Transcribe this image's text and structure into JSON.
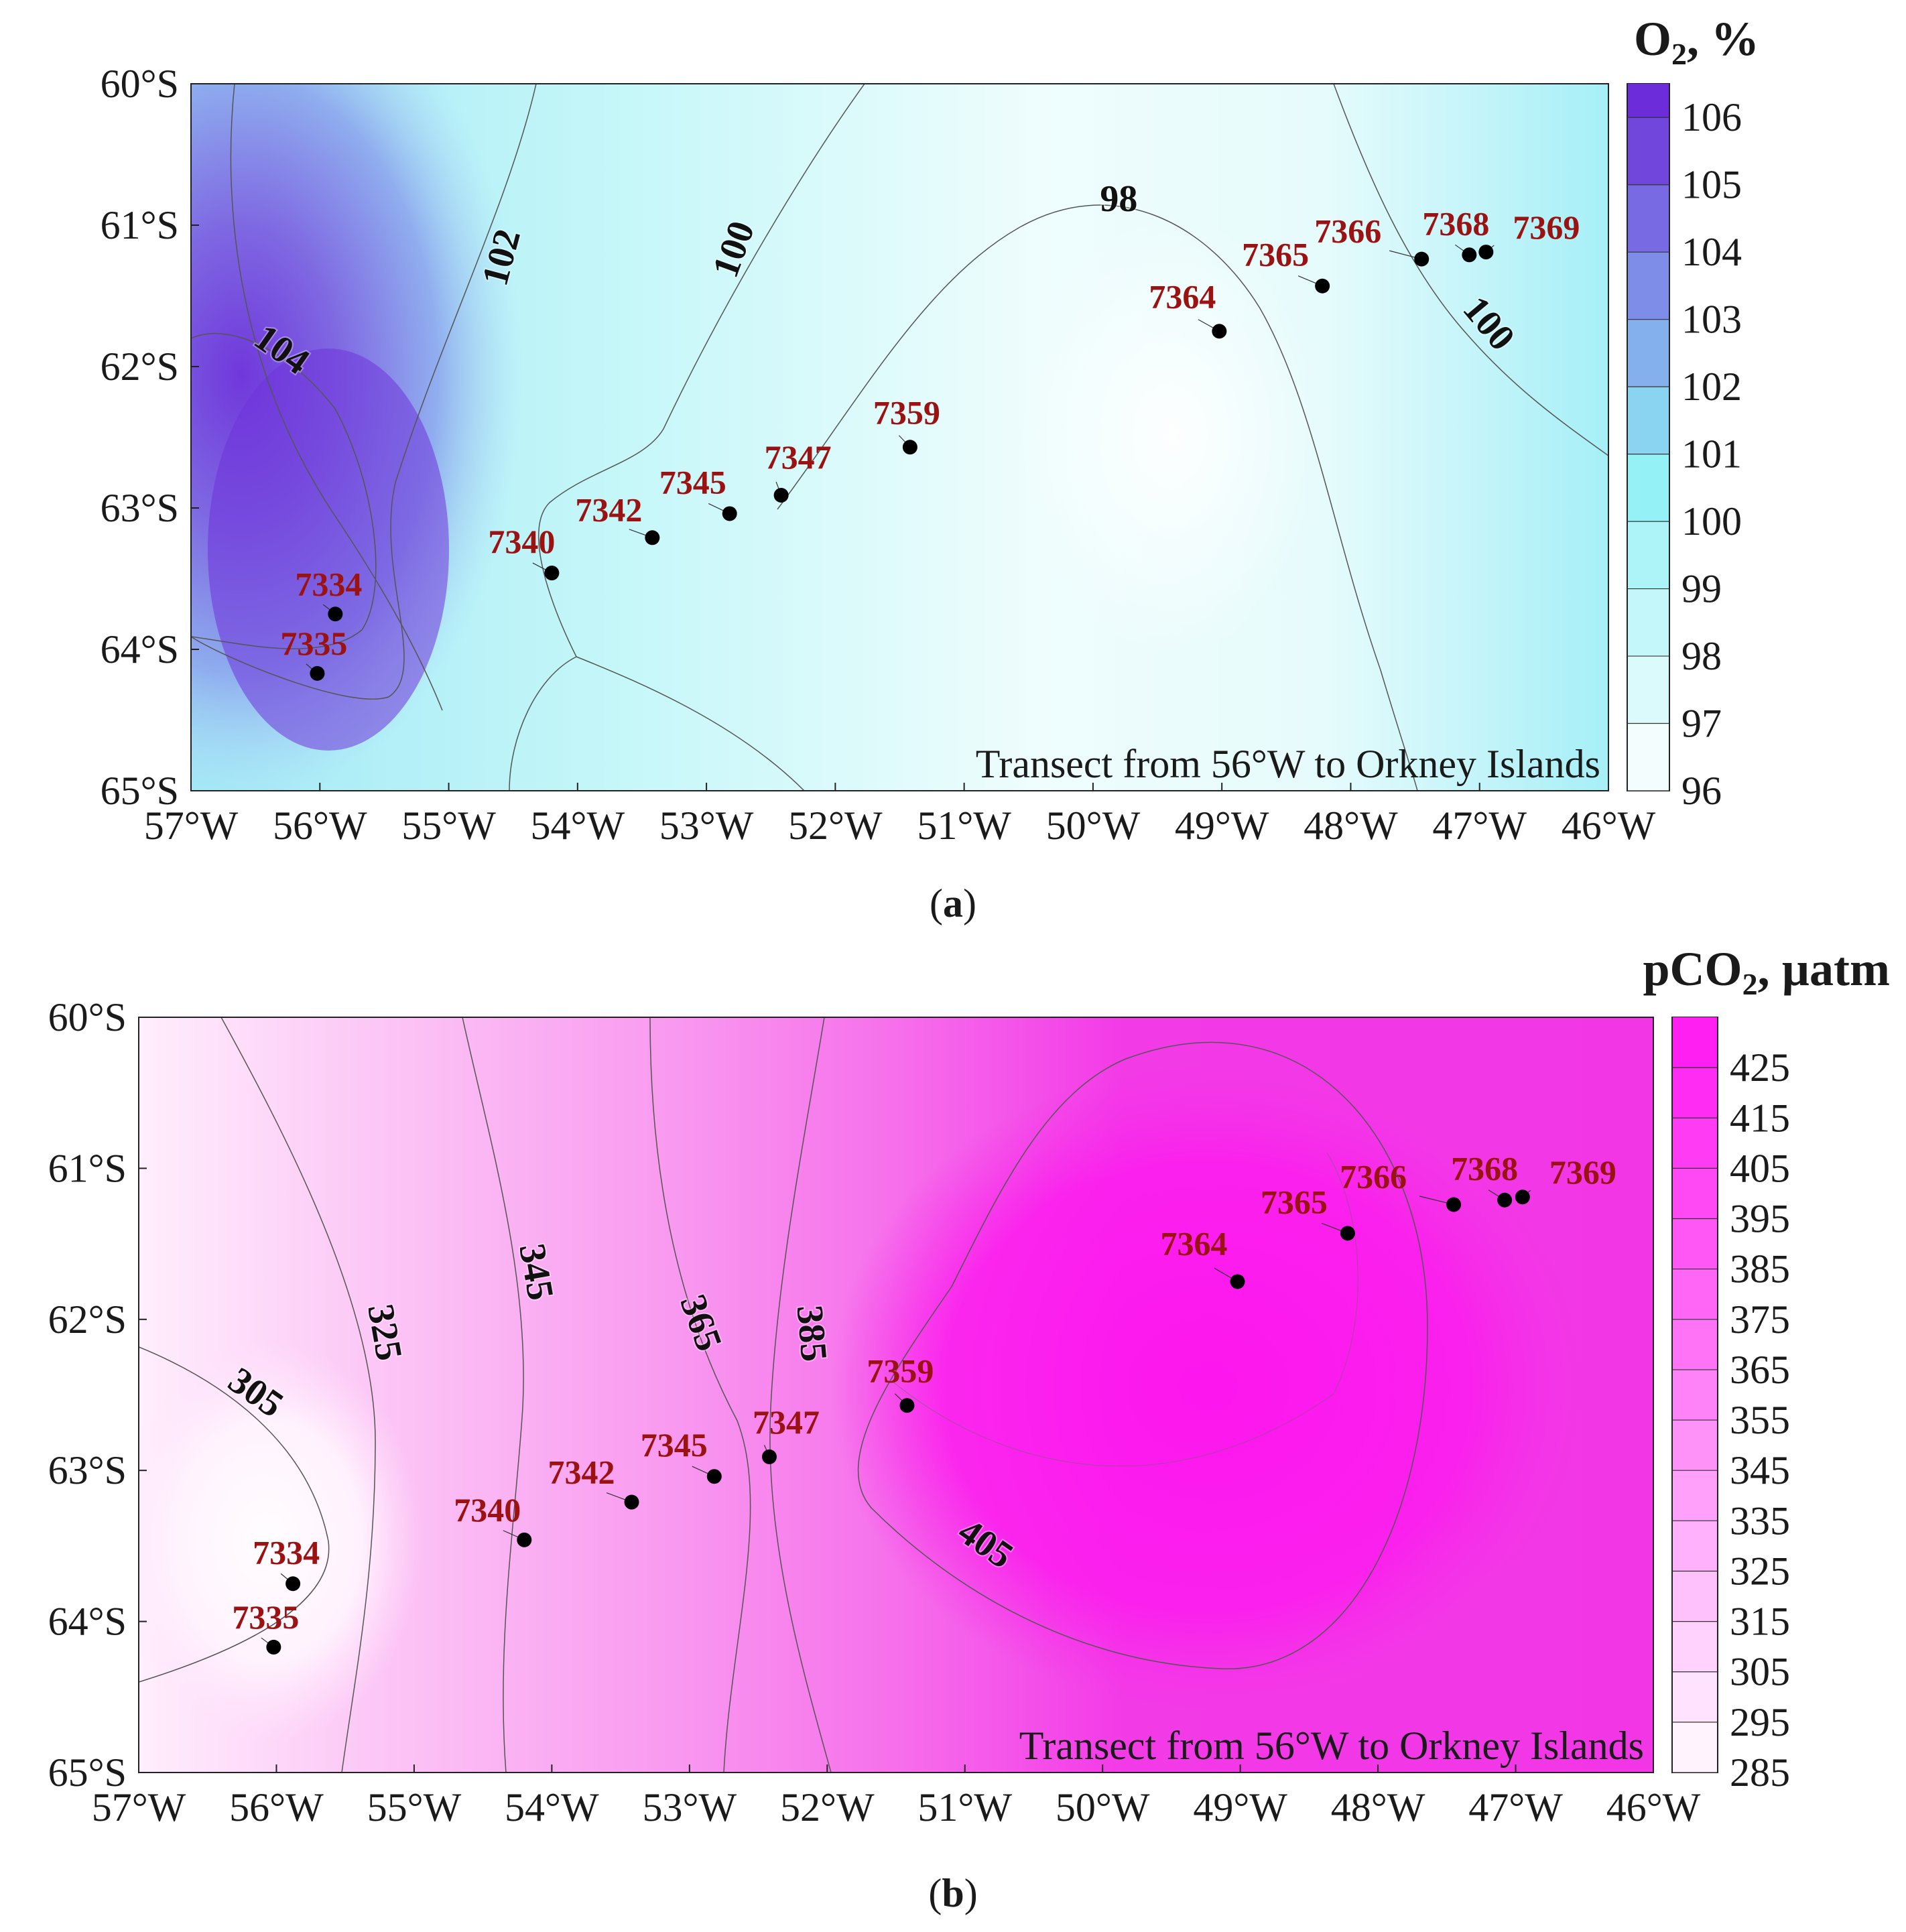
{
  "chart_data": [
    {
      "type": "contour",
      "panel_label": "a",
      "title": "O2, %",
      "colorbar_title": "O₂, %",
      "annotation": "Transect from 56°W to Orkney Islands",
      "x_ticks": [
        "57°W",
        "56°W",
        "55°W",
        "54°W",
        "53°W",
        "52°W",
        "51°W",
        "50°W",
        "49°W",
        "48°W",
        "47°W",
        "46°W"
      ],
      "y_ticks": [
        "60°S",
        "61°S",
        "62°S",
        "63°S",
        "64°S",
        "65°S"
      ],
      "xlim": [
        -57,
        -46
      ],
      "ylim": [
        -65,
        -60
      ],
      "colorbar_ticks": [
        "106",
        "105",
        "104",
        "103",
        "102",
        "101",
        "100",
        "99",
        "98",
        "97",
        "96"
      ],
      "colorbar_range": [
        96,
        106.5
      ],
      "contour_labels": [
        {
          "text": "104",
          "lon": -56.35,
          "lat": -61.95
        },
        {
          "text": "102",
          "lon": -54.5,
          "lat": -61.25
        },
        {
          "text": "100",
          "lon": -52.7,
          "lat": -61.2
        },
        {
          "text": "98",
          "lon": -49.8,
          "lat": -60.9
        },
        {
          "text": "100",
          "lon": -47.0,
          "lat": -61.75
        }
      ],
      "stations": [
        {
          "id": "7334",
          "lon": -55.88,
          "lat": -63.75
        },
        {
          "id": "7335",
          "lon": -56.02,
          "lat": -64.17
        },
        {
          "id": "7340",
          "lon": -54.2,
          "lat": -63.46
        },
        {
          "id": "7342",
          "lon": -53.42,
          "lat": -63.21
        },
        {
          "id": "7345",
          "lon": -52.82,
          "lat": -63.04
        },
        {
          "id": "7347",
          "lon": -52.42,
          "lat": -62.91
        },
        {
          "id": "7359",
          "lon": -51.42,
          "lat": -62.57
        },
        {
          "id": "7364",
          "lon": -49.02,
          "lat": -61.75
        },
        {
          "id": "7365",
          "lon": -48.22,
          "lat": -61.43
        },
        {
          "id": "7366",
          "lon": -47.45,
          "lat": -61.24
        },
        {
          "id": "7368",
          "lon": -47.08,
          "lat": -61.21
        },
        {
          "id": "7369",
          "lon": -46.95,
          "lat": -61.19
        }
      ]
    },
    {
      "type": "contour",
      "panel_label": "b",
      "title": "pCO2, µatm",
      "colorbar_title": "pCO₂, µatm",
      "annotation": "Transect from 56°W to Orkney Islands",
      "x_ticks": [
        "57°W",
        "56°W",
        "55°W",
        "54°W",
        "53°W",
        "52°W",
        "51°W",
        "50°W",
        "49°W",
        "48°W",
        "47°W",
        "46°W"
      ],
      "y_ticks": [
        "60°S",
        "61°S",
        "62°S",
        "63°S",
        "64°S",
        "65°S"
      ],
      "xlim": [
        -57,
        -46
      ],
      "ylim": [
        -65,
        -60
      ],
      "colorbar_ticks": [
        "425",
        "415",
        "405",
        "395",
        "385",
        "375",
        "365",
        "355",
        "345",
        "335",
        "325",
        "315",
        "305",
        "295",
        "285"
      ],
      "colorbar_range": [
        285,
        435
      ],
      "contour_labels": [
        {
          "text": "305",
          "lon": -56.2,
          "lat": -62.55
        },
        {
          "text": "325",
          "lon": -55.3,
          "lat": -62.1
        },
        {
          "text": "345",
          "lon": -54.2,
          "lat": -61.7
        },
        {
          "text": "365",
          "lon": -53.0,
          "lat": -62.05
        },
        {
          "text": "385",
          "lon": -52.2,
          "lat": -62.1
        },
        {
          "text": "405",
          "lon": -50.9,
          "lat": -63.55
        }
      ],
      "stations": [
        {
          "id": "7334",
          "lon": -55.88,
          "lat": -63.75
        },
        {
          "id": "7335",
          "lon": -56.02,
          "lat": -64.17
        },
        {
          "id": "7340",
          "lon": -54.2,
          "lat": -63.46
        },
        {
          "id": "7342",
          "lon": -53.42,
          "lat": -63.21
        },
        {
          "id": "7345",
          "lon": -52.82,
          "lat": -63.04
        },
        {
          "id": "7347",
          "lon": -52.42,
          "lat": -62.91
        },
        {
          "id": "7359",
          "lon": -51.42,
          "lat": -62.57
        },
        {
          "id": "7364",
          "lon": -49.02,
          "lat": -61.75
        },
        {
          "id": "7365",
          "lon": -48.22,
          "lat": -61.43
        },
        {
          "id": "7366",
          "lon": -47.45,
          "lat": -61.24
        },
        {
          "id": "7368",
          "lon": -47.08,
          "lat": -61.21
        },
        {
          "id": "7369",
          "lon": -46.95,
          "lat": -61.19
        }
      ]
    }
  ],
  "colors": {
    "o2_low": "#ffffff",
    "o2_mid": "#8ff0f6",
    "o2_high": "#6a23d8",
    "pco2_low": "#ffffff",
    "pco2_high": "#ff18f2",
    "station_label": "#9b1212"
  }
}
